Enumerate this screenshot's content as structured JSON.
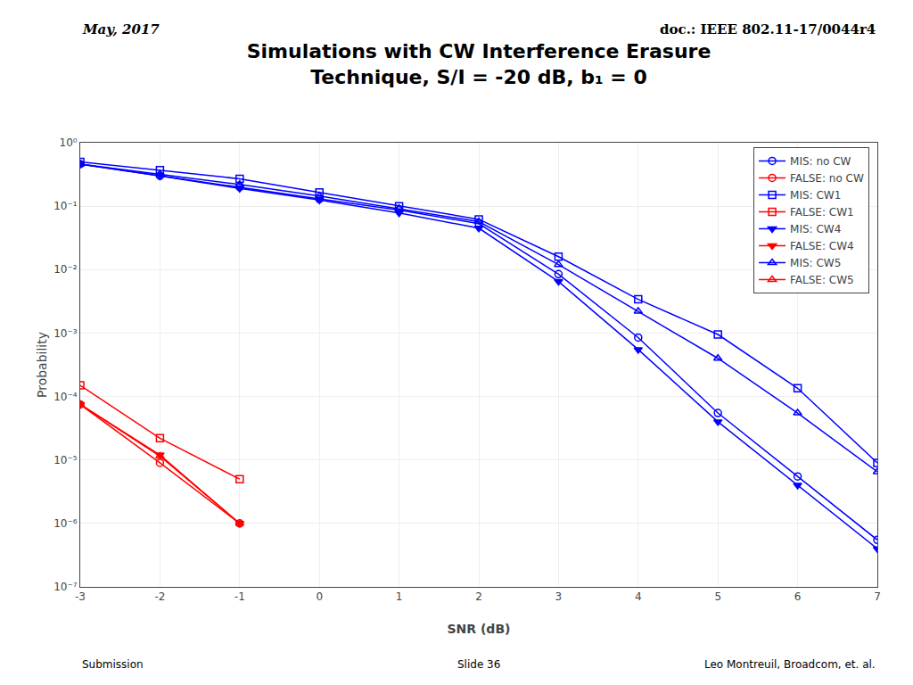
{
  "chart_data": {
    "type": "line",
    "title": "Simulations with CW Interference Erasure\nTechnique, S/I = -20 dB, b₁ = 0",
    "annotations": [
      "May, 2017",
      "doc.: IEEE 802.11-17/0044r4",
      "Submission",
      "Slide 36",
      "Leo Montreuil, Broadcom, et. al."
    ],
    "x_label": "SNR (dB)",
    "y_label": "Probability",
    "x": [
      -3,
      -2,
      -1,
      0,
      1,
      2,
      3,
      4,
      5,
      6,
      7
    ],
    "series": [
      {
        "name": "MIS: no CW",
        "color": "#0000FF",
        "marker": "circle-open",
        "values": [
          0.46,
          0.3,
          0.2,
          0.13,
          0.087,
          0.053,
          0.0085,
          0.00085,
          5.5e-05,
          5.5e-06,
          5.5e-07
        ]
      },
      {
        "name": "FALSE: no CW",
        "color": "#FF0000",
        "marker": "circle-open",
        "values": [
          7.5e-05,
          9e-06,
          1e-06,
          null,
          null,
          null,
          null,
          null,
          null,
          null,
          null
        ]
      },
      {
        "name": "MIS: CW1",
        "color": "#0000FF",
        "marker": "square-open",
        "values": [
          0.5,
          0.37,
          0.27,
          0.165,
          0.1,
          0.062,
          0.016,
          0.0034,
          0.00095,
          0.000135,
          9e-06
        ]
      },
      {
        "name": "FALSE: CW1",
        "color": "#FF0000",
        "marker": "square-open",
        "values": [
          0.00015,
          2.2e-05,
          5e-06,
          null,
          null,
          null,
          null,
          null,
          null,
          null,
          null
        ]
      },
      {
        "name": "MIS: CW4",
        "color": "#0000FF",
        "marker": "triangle-down",
        "values": [
          0.46,
          0.3,
          0.19,
          0.125,
          0.078,
          0.045,
          0.0065,
          0.00055,
          4e-05,
          4e-06,
          4e-07
        ]
      },
      {
        "name": "FALSE: CW4",
        "color": "#FF0000",
        "marker": "triangle-down",
        "values": [
          7.5e-05,
          1.2e-05,
          1e-06,
          null,
          null,
          null,
          null,
          null,
          null,
          null,
          null
        ]
      },
      {
        "name": "MIS: CW5",
        "color": "#0000FF",
        "marker": "triangle-up-open",
        "values": [
          0.46,
          0.32,
          0.22,
          0.145,
          0.092,
          0.057,
          0.012,
          0.0022,
          0.0004,
          5.5e-05,
          6.5e-06
        ]
      },
      {
        "name": "FALSE: CW5",
        "color": "#FF0000",
        "marker": "triangle-up-open",
        "values": [
          7.5e-05,
          1.15e-05,
          1e-06,
          null,
          null,
          null,
          null,
          null,
          null,
          null,
          null
        ]
      }
    ],
    "xlim": [
      -3,
      7
    ],
    "xticks": [
      -3,
      -2,
      -1,
      0,
      1,
      2,
      3,
      4,
      5,
      6,
      7
    ],
    "ylim": [
      1e-07,
      1
    ],
    "yticks": [
      {
        "value": 1e-07,
        "label": "10⁻⁷"
      },
      {
        "value": 1e-06,
        "label": "10⁻⁶"
      },
      {
        "value": 1e-05,
        "label": "10⁻⁵"
      },
      {
        "value": 0.0001,
        "label": "10⁻⁴"
      },
      {
        "value": 0.001,
        "label": "10⁻³"
      },
      {
        "value": 0.01,
        "label": "10⁻²"
      },
      {
        "value": 0.1,
        "label": "10⁻¹"
      },
      {
        "value": 1,
        "label": "10⁰"
      }
    ],
    "log": "y",
    "grid": true,
    "legend": "upper right"
  }
}
